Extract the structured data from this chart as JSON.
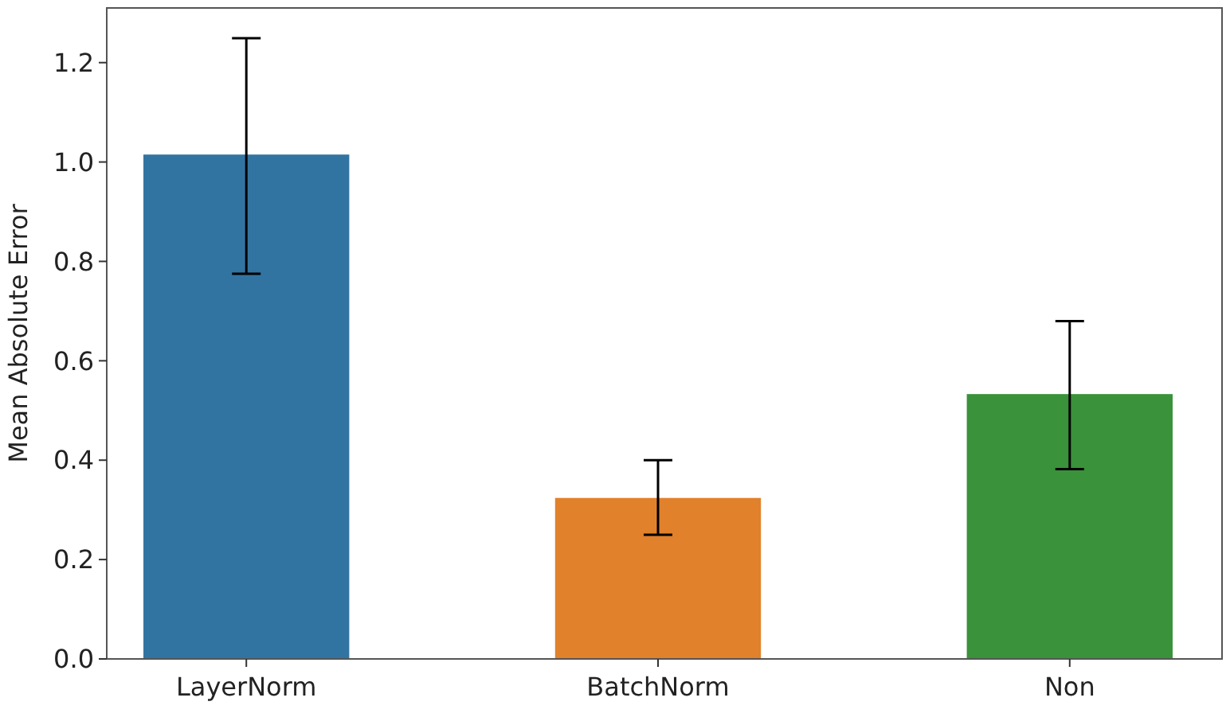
{
  "chart_data": {
    "type": "bar",
    "ylabel": "Mean Absolute Error",
    "categories": [
      "LayerNorm",
      "BatchNorm",
      "Non"
    ],
    "values": [
      1.015,
      0.324,
      0.533
    ],
    "errors": [
      [
        0.775,
        1.249
      ],
      [
        0.25,
        0.4
      ],
      [
        0.382,
        0.68
      ]
    ],
    "colors": [
      "#3274a1",
      "#e1812c",
      "#3a923a"
    ],
    "ylim": [
      0,
      1.31
    ],
    "yticks": [
      {
        "value": 0,
        "label": "0.0"
      },
      {
        "value": 0.2,
        "label": "0.2"
      },
      {
        "value": 0.4,
        "label": "0.4"
      },
      {
        "value": 0.6,
        "label": "0.6"
      },
      {
        "value": 0.8,
        "label": "0.8"
      },
      {
        "value": 1,
        "label": "1.0"
      },
      {
        "value": 1.2,
        "label": "1.2"
      }
    ],
    "grid": false
  }
}
